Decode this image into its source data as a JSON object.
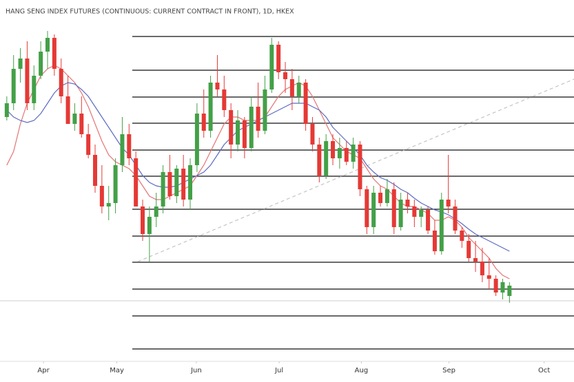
{
  "chart_data": {
    "type": "candlestick",
    "title": "HANG SENG INDEX FUTURES (CONTINUOUS: CURRENT CONTRACT IN FRONT), 1D, HKEX",
    "open": [
      21440,
      21680,
      22280,
      22460,
      21680,
      22160,
      22580,
      22820,
      22280,
      21800,
      21320,
      21500,
      21140,
      20780,
      20240,
      19880,
      19940,
      20600,
      21140,
      20720,
      19880,
      19400,
      19700,
      19880,
      20480,
      20060,
      20540,
      20000,
      20600,
      21500,
      21200,
      22040,
      21920,
      21560,
      20960,
      21380,
      20900,
      21620,
      21200,
      21920,
      22700,
      22220,
      22100,
      21800,
      22040,
      21320,
      20960,
      20420,
      21020,
      20720,
      20900,
      20660,
      20960,
      20180,
      19520,
      20120,
      19940,
      20180,
      19520,
      20000,
      19880,
      19700,
      19820,
      19460,
      19100,
      20000,
      19880,
      19460,
      19280,
      18980,
      18920,
      18680,
      18620,
      18380,
      18320
    ],
    "high": [
      21800,
      22520,
      22640,
      22760,
      22340,
      22760,
      22940,
      22880,
      22460,
      22160,
      21680,
      21800,
      21320,
      20960,
      20600,
      20240,
      20720,
      21440,
      21320,
      20840,
      20000,
      19880,
      20120,
      20600,
      20780,
      20600,
      20780,
      20720,
      21680,
      21920,
      22160,
      22520,
      22160,
      21680,
      21560,
      21440,
      21800,
      22040,
      22160,
      22820,
      22760,
      22400,
      22280,
      22160,
      22100,
      21440,
      21080,
      21140,
      21140,
      21080,
      21020,
      21080,
      21020,
      20240,
      20240,
      20240,
      20360,
      20300,
      20120,
      20120,
      20000,
      19880,
      19880,
      19640,
      20120,
      20780,
      20000,
      19520,
      19400,
      19280,
      19160,
      18980,
      18680,
      18620,
      18560
    ],
    "low": [
      21380,
      21560,
      22040,
      21560,
      21560,
      22100,
      22280,
      22160,
      21680,
      21320,
      21200,
      21080,
      20720,
      20120,
      19760,
      19640,
      19760,
      20480,
      20600,
      19880,
      19280,
      18920,
      19520,
      19760,
      20000,
      19940,
      19880,
      19820,
      20480,
      21080,
      21080,
      21800,
      21440,
      20720,
      20840,
      20720,
      20840,
      21080,
      21140,
      21860,
      22100,
      21860,
      21560,
      21680,
      21200,
      20840,
      20300,
      20360,
      20600,
      20540,
      20600,
      20540,
      20060,
      19400,
      19400,
      19880,
      19880,
      19400,
      19460,
      19760,
      19520,
      19520,
      19400,
      19040,
      19040,
      19760,
      19400,
      19160,
      18920,
      18740,
      18560,
      18440,
      18320,
      18260,
      18200
    ],
    "close": [
      21680,
      22280,
      22460,
      21680,
      22160,
      22580,
      22820,
      22280,
      21800,
      21320,
      21500,
      21140,
      20780,
      20240,
      19880,
      19940,
      20600,
      21140,
      20720,
      19880,
      19400,
      19700,
      19880,
      20480,
      20060,
      20540,
      20000,
      20600,
      21500,
      21200,
      22040,
      21920,
      21560,
      20960,
      21380,
      20900,
      21620,
      21200,
      21920,
      22700,
      22220,
      22100,
      21800,
      22040,
      21320,
      20960,
      20420,
      21020,
      20720,
      20900,
      20660,
      20960,
      20180,
      19520,
      20120,
      19940,
      20180,
      19520,
      20000,
      19880,
      19700,
      19820,
      19460,
      19100,
      20000,
      19880,
      19460,
      19280,
      18980,
      18920,
      18680,
      18620,
      18380,
      18560,
      18500
    ],
    "up_color": "#43a047",
    "down_color": "#e53935",
    "series": [
      {
        "color": "#e57373",
        "values": [
          20600,
          20840,
          21320,
          21680,
          21920,
          22160,
          22280,
          22340,
          22280,
          22160,
          22040,
          21860,
          21620,
          21320,
          21020,
          20780,
          20660,
          20600,
          20540,
          20420,
          20240,
          20060,
          20000,
          20000,
          20060,
          20120,
          20180,
          20240,
          20420,
          20600,
          20840,
          21080,
          21320,
          21440,
          21440,
          21380,
          21380,
          21380,
          21440,
          21620,
          21800,
          21920,
          21980,
          22040,
          21980,
          21800,
          21560,
          21320,
          21080,
          20960,
          20840,
          20780,
          20720,
          20540,
          20360,
          20240,
          20180,
          20060,
          19940,
          19880,
          19880,
          19820,
          19760,
          19640,
          19640,
          19700,
          19640,
          19520,
          19340,
          19220,
          19100,
          18980,
          18800,
          18680,
          18620
        ]
      },
      {
        "color": "#5c6bc0",
        "values": [
          21560,
          21440,
          21380,
          21344,
          21380,
          21500,
          21680,
          21860,
          21980,
          22040,
          22016,
          21920,
          21800,
          21620,
          21440,
          21260,
          21080,
          20900,
          20780,
          20600,
          20420,
          20300,
          20240,
          20216,
          20216,
          20240,
          20300,
          20360,
          20420,
          20480,
          20600,
          20780,
          20960,
          21080,
          21200,
          21260,
          21320,
          21380,
          21440,
          21500,
          21560,
          21620,
          21680,
          21680,
          21680,
          21620,
          21560,
          21440,
          21260,
          21140,
          21020,
          20900,
          20780,
          20600,
          20480,
          20384,
          20336,
          20264,
          20180,
          20120,
          20024,
          19940,
          19880,
          19820,
          19784,
          19736,
          19664,
          19580,
          19484,
          19400,
          19340,
          19280,
          19220,
          19160,
          19100
        ]
      }
    ],
    "levels": [
      22844,
      22256,
      21788,
      21332,
      20864,
      20408,
      19832,
      19364,
      18908,
      18440,
      17972,
      17396
    ],
    "level_color": "#111111",
    "trendline": {
      "x": [
        19.3,
        83.5
      ],
      "y": [
        18920,
        22100
      ],
      "color": "#c8c8c8"
    },
    "last_price": 18236,
    "xlim": [
      -1,
      83.5
    ],
    "ylim": [
      17180,
      23480
    ],
    "xticks": [
      {
        "value": 5.4,
        "label": "Apr"
      },
      {
        "value": 16.2,
        "label": "May"
      },
      {
        "value": 27.9,
        "label": "Jun"
      },
      {
        "value": 40.1,
        "label": "Jul"
      },
      {
        "value": 52.2,
        "label": "Aug"
      },
      {
        "value": 65.1,
        "label": "Sep"
      },
      {
        "value": 79.1,
        "label": "Oct"
      }
    ]
  }
}
